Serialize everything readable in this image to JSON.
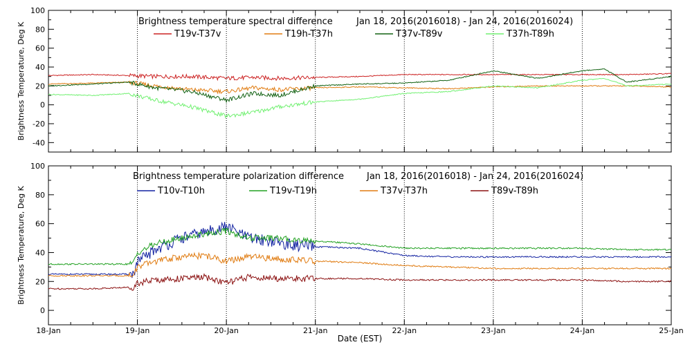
{
  "chart_data": [
    {
      "type": "line",
      "title": "Brightness temperature spectral difference",
      "date_range": "Jan 18, 2016(2016018) - Jan 24, 2016(2016024)",
      "xlabel": "",
      "ylabel": "Brightness Temperature, Deg K",
      "xlim": [
        0,
        7
      ],
      "ylim": [
        -50,
        100
      ],
      "yticks": [
        -40,
        -20,
        0,
        20,
        40,
        60,
        80,
        100
      ],
      "grid": "dotted vertical at day boundaries",
      "legend": "top",
      "series": [
        {
          "name": "T19v-T37v",
          "color": "#cc2222",
          "x": [
            0,
            0.5,
            0.9,
            1.2,
            1.6,
            2.0,
            2.3,
            2.6,
            3.0,
            3.5,
            4.0,
            4.5,
            5.0,
            5.5,
            6.0,
            6.5,
            7.0
          ],
          "y": [
            31,
            32,
            31,
            30,
            30,
            28,
            29,
            28,
            29,
            30,
            32,
            32,
            32,
            32,
            32,
            32,
            33
          ]
        },
        {
          "name": "T19h-T37h",
          "color": "#e07b10",
          "x": [
            0,
            0.5,
            0.9,
            1.2,
            1.6,
            2.0,
            2.3,
            2.6,
            3.0,
            3.5,
            4.0,
            4.5,
            5.0,
            5.5,
            6.0,
            6.5,
            7.0
          ],
          "y": [
            22,
            23,
            24,
            20,
            16,
            14,
            18,
            16,
            18,
            19,
            18,
            17,
            19,
            20,
            20,
            20,
            19
          ]
        },
        {
          "name": "T37v-T89v",
          "color": "#106010",
          "x": [
            0,
            0.5,
            0.9,
            1.2,
            1.6,
            2.0,
            2.3,
            2.6,
            3.0,
            3.5,
            4.0,
            4.5,
            5.0,
            5.5,
            6.0,
            6.25,
            6.5,
            7.0
          ],
          "y": [
            20,
            22,
            24,
            18,
            14,
            5,
            12,
            10,
            20,
            22,
            23,
            26,
            36,
            28,
            36,
            38,
            24,
            30
          ]
        },
        {
          "name": "T37h-T89h",
          "color": "#70f070",
          "x": [
            0,
            0.5,
            0.9,
            1.2,
            1.6,
            2.0,
            2.3,
            2.6,
            3.0,
            3.5,
            4.0,
            4.5,
            5.0,
            5.5,
            6.0,
            6.25,
            6.5,
            7.0
          ],
          "y": [
            11,
            10,
            12,
            5,
            -2,
            -12,
            -8,
            -2,
            3,
            6,
            12,
            14,
            20,
            18,
            26,
            28,
            20,
            22
          ]
        }
      ],
      "xticks": [
        "18-Jan",
        "19-Jan",
        "20-Jan",
        "21-Jan",
        "22-Jan",
        "23-Jan",
        "24-Jan",
        "25-Jan"
      ]
    },
    {
      "type": "line",
      "title": "Brightness temperature polarization difference",
      "date_range": "Jan 18, 2016(2016018) - Jan 24, 2016(2016024)",
      "xlabel": "Date (EST)",
      "ylabel": "Brightness Temperature, Deg K",
      "xlim": [
        0,
        7
      ],
      "ylim": [
        -10,
        100
      ],
      "yticks": [
        0,
        20,
        40,
        60,
        80,
        100
      ],
      "grid": "dotted vertical at day boundaries",
      "legend": "top",
      "series": [
        {
          "name": "T10v-T10h",
          "color": "#1020a0",
          "x": [
            0,
            0.5,
            0.95,
            1.0,
            1.2,
            1.5,
            1.75,
            2.0,
            2.25,
            2.5,
            2.75,
            3.0,
            3.5,
            4.0,
            4.5,
            5.0,
            5.5,
            6.0,
            6.5,
            7.0
          ],
          "y": [
            25,
            25,
            25,
            33,
            42,
            50,
            54,
            58,
            50,
            48,
            45,
            44,
            43,
            38,
            37,
            37,
            37,
            37,
            37,
            37
          ]
        },
        {
          "name": "T19v-T19h",
          "color": "#20a020",
          "x": [
            0,
            0.5,
            0.95,
            1.0,
            1.2,
            1.5,
            1.75,
            2.0,
            2.25,
            2.5,
            2.75,
            3.0,
            3.5,
            4.0,
            4.5,
            5.0,
            5.5,
            6.0,
            6.5,
            7.0
          ],
          "y": [
            32,
            32,
            32,
            40,
            46,
            50,
            53,
            55,
            50,
            50,
            49,
            48,
            46,
            43,
            43,
            43,
            43,
            43,
            42,
            42
          ]
        },
        {
          "name": "T37v-T37h",
          "color": "#e07b10",
          "x": [
            0,
            0.5,
            0.95,
            1.0,
            1.2,
            1.5,
            1.75,
            2.0,
            2.25,
            2.5,
            2.75,
            3.0,
            3.5,
            4.0,
            4.5,
            5.0,
            5.5,
            6.0,
            6.5,
            7.0
          ],
          "y": [
            24,
            24,
            24,
            30,
            34,
            37,
            38,
            34,
            37,
            36,
            35,
            34,
            33,
            31,
            30,
            29,
            29,
            29,
            29,
            29
          ]
        },
        {
          "name": "T89v-T89h",
          "color": "#8b1010",
          "x": [
            0,
            0.5,
            0.95,
            1.0,
            1.2,
            1.5,
            1.75,
            2.0,
            2.25,
            2.5,
            2.75,
            3.0,
            3.5,
            4.0,
            4.5,
            5.0,
            5.5,
            6.0,
            6.5,
            7.0
          ],
          "y": [
            15,
            15,
            16,
            19,
            21,
            22,
            23,
            19,
            23,
            22,
            22,
            22,
            22,
            21,
            21,
            21,
            21,
            21,
            20,
            20
          ]
        }
      ],
      "xticks": [
        "18-Jan",
        "19-Jan",
        "20-Jan",
        "21-Jan",
        "22-Jan",
        "23-Jan",
        "24-Jan",
        "25-Jan"
      ]
    }
  ]
}
